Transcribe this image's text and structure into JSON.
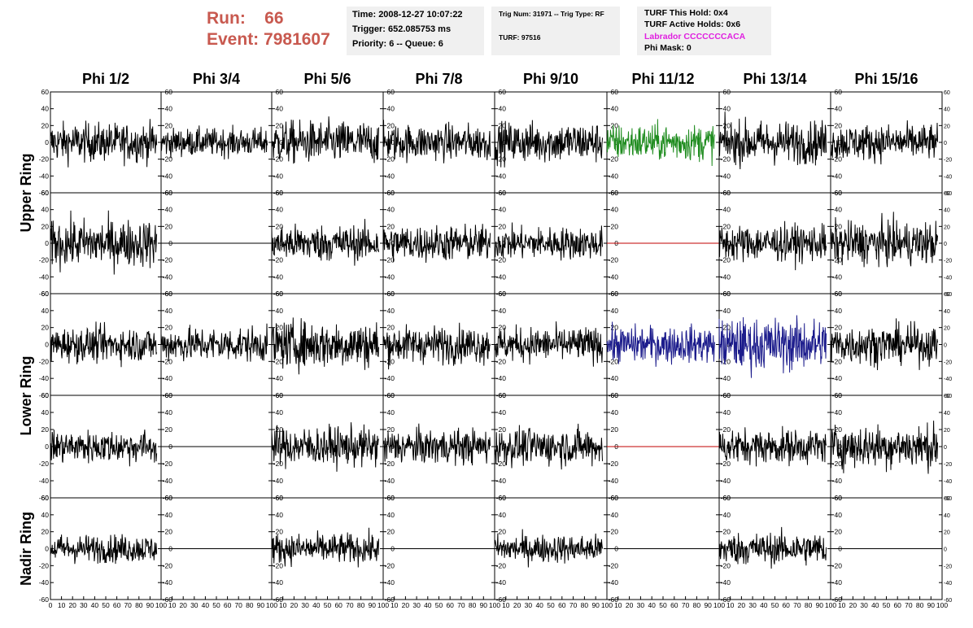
{
  "header": {
    "run_label": "Run:",
    "run_value": "66",
    "event_label": "Event:",
    "event_value": "7981607",
    "time_line": "Time: 2008-12-27 10:07:22",
    "trigger_line": "Trigger: 652.085753 ms",
    "priority_line": "Priority: 6 -- Queue: 6",
    "trig_line": "Trig Num: 31971 -- Trig Type: RF",
    "turf_line": "TURF: 97516",
    "turf_hold_line": "TURF This Hold: 0x4",
    "turf_active_line": "TURF Active Holds: 0x6",
    "labrador_line": "Labrador CCCCCCCACA",
    "phi_mask_line": "Phi Mask: 0",
    "labrador_color": "#e020e0"
  },
  "chart_data": {
    "type": "line",
    "columns": [
      "Phi 1/2",
      "Phi 3/4",
      "Phi 5/6",
      "Phi 7/8",
      "Phi 9/10",
      "Phi 11/12",
      "Phi 13/14",
      "Phi 15/16"
    ],
    "row_groups": [
      "Upper Ring",
      "Lower Ring",
      "Nadir Ring"
    ],
    "ylim": [
      -60,
      60
    ],
    "xlim": [
      0,
      100
    ],
    "y_ticks": [
      -60,
      -40,
      -20,
      0,
      20,
      40,
      60
    ],
    "x_ticks": [
      0,
      10,
      20,
      30,
      40,
      50,
      60,
      70,
      80,
      90,
      100
    ],
    "panel_rows": [
      {
        "group": "Upper Ring",
        "panels": [
          {
            "mode": "noise",
            "amp": 18,
            "color": "#000000"
          },
          {
            "mode": "noise",
            "amp": 13,
            "color": "#000000"
          },
          {
            "mode": "noise",
            "amp": 20,
            "color": "#000000"
          },
          {
            "mode": "noise",
            "amp": 17,
            "color": "#000000"
          },
          {
            "mode": "noise",
            "amp": 19,
            "color": "#000000"
          },
          {
            "mode": "noise",
            "amp": 17,
            "color": "#1f8c1f"
          },
          {
            "mode": "noise",
            "amp": 20,
            "color": "#000000"
          },
          {
            "mode": "noise",
            "amp": 17,
            "color": "#000000"
          }
        ]
      },
      {
        "group": "Upper Ring",
        "panels": [
          {
            "mode": "noise",
            "amp": 22,
            "color": "#000000"
          },
          {
            "mode": "flat",
            "color": "#000000"
          },
          {
            "mode": "noise",
            "amp": 17,
            "color": "#000000"
          },
          {
            "mode": "noise",
            "amp": 17,
            "color": "#000000"
          },
          {
            "mode": "noise",
            "amp": 15,
            "color": "#000000"
          },
          {
            "mode": "flat",
            "color": "#c00000"
          },
          {
            "mode": "noise",
            "amp": 17,
            "color": "#000000"
          },
          {
            "mode": "noise",
            "amp": 20,
            "color": "#000000"
          }
        ]
      },
      {
        "group": "Lower Ring",
        "panels": [
          {
            "mode": "noise",
            "amp": 16,
            "color": "#000000"
          },
          {
            "mode": "noise",
            "amp": 16,
            "color": "#000000"
          },
          {
            "mode": "noise",
            "amp": 22,
            "color": "#000000"
          },
          {
            "mode": "noise",
            "amp": 17,
            "color": "#000000"
          },
          {
            "mode": "noise",
            "amp": 16,
            "color": "#000000"
          },
          {
            "mode": "noise",
            "amp": 17,
            "color": "#1c1c8c"
          },
          {
            "mode": "noise",
            "amp": 24,
            "color": "#1c1c8c"
          },
          {
            "mode": "noise",
            "amp": 18,
            "color": "#000000"
          }
        ]
      },
      {
        "group": "Lower Ring",
        "panels": [
          {
            "mode": "noise",
            "amp": 15,
            "color": "#000000"
          },
          {
            "mode": "flat",
            "color": "#000000"
          },
          {
            "mode": "noise",
            "amp": 18,
            "color": "#000000"
          },
          {
            "mode": "noise",
            "amp": 16,
            "color": "#000000"
          },
          {
            "mode": "noise",
            "amp": 17,
            "color": "#000000"
          },
          {
            "mode": "flat",
            "color": "#c00000"
          },
          {
            "mode": "noise",
            "amp": 16,
            "color": "#000000"
          },
          {
            "mode": "noise",
            "amp": 20,
            "color": "#000000"
          }
        ]
      },
      {
        "group": "Nadir Ring",
        "panels": [
          {
            "mode": "noise",
            "amp": 13,
            "color": "#000000"
          },
          {
            "mode": "flat",
            "color": "#000000"
          },
          {
            "mode": "noise",
            "amp": 14,
            "color": "#000000"
          },
          {
            "mode": "flat",
            "color": "#000000"
          },
          {
            "mode": "noise",
            "amp": 13,
            "color": "#000000"
          },
          {
            "mode": "flat",
            "color": "#000000"
          },
          {
            "mode": "noise",
            "amp": 15,
            "color": "#000000"
          },
          {
            "mode": "flat",
            "color": "#000000"
          }
        ]
      }
    ]
  }
}
